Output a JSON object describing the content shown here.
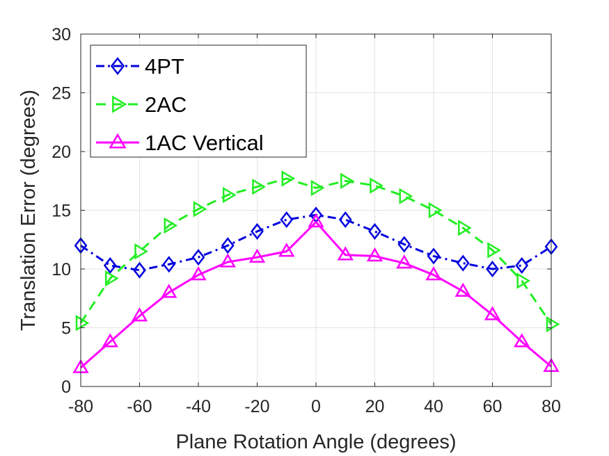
{
  "chart_data": {
    "type": "line",
    "title": "",
    "xlabel": "Plane Rotation Angle (degrees)",
    "ylabel": "Translation Error (degrees)",
    "xlim": [
      -80,
      80
    ],
    "ylim": [
      0,
      30
    ],
    "xticks": [
      -80,
      -60,
      -40,
      -20,
      0,
      20,
      40,
      60,
      80
    ],
    "yticks": [
      0,
      5,
      10,
      15,
      20,
      25,
      30
    ],
    "grid": true,
    "legend_position": "top-left",
    "x": [
      -80,
      -70,
      -60,
      -50,
      -40,
      -30,
      -20,
      -10,
      0,
      10,
      20,
      30,
      40,
      50,
      60,
      70,
      80
    ],
    "series": [
      {
        "name": "4PT",
        "color": "#0000dd",
        "line_style": "dash-dot",
        "marker": "diamond",
        "values": [
          12.0,
          10.3,
          9.9,
          10.4,
          11.0,
          12.0,
          13.2,
          14.2,
          14.6,
          14.2,
          13.2,
          12.1,
          11.1,
          10.5,
          10.0,
          10.3,
          11.9
        ]
      },
      {
        "name": "2AC",
        "color": "#22ee22",
        "line_style": "dashed",
        "marker": "triangle-right",
        "values": [
          5.4,
          9.2,
          11.5,
          13.7,
          15.1,
          16.3,
          17.0,
          17.7,
          16.9,
          17.5,
          17.1,
          16.2,
          15.0,
          13.5,
          11.6,
          9.0,
          5.3
        ]
      },
      {
        "name": "1AC Vertical",
        "color": "#ff00ff",
        "line_style": "solid",
        "marker": "triangle-up",
        "values": [
          1.6,
          3.8,
          6.0,
          8.0,
          9.5,
          10.6,
          11.0,
          11.5,
          14.0,
          11.2,
          11.1,
          10.5,
          9.5,
          8.1,
          6.1,
          3.8,
          1.7
        ]
      }
    ]
  }
}
